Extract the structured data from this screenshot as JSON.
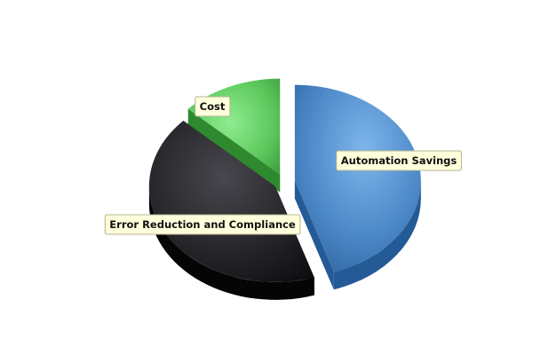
{
  "chart_data": {
    "type": "pie",
    "title": "",
    "slices": [
      {
        "label": "Automation Savings",
        "value": 45,
        "color": "#4a86c6"
      },
      {
        "label": "Error Reduction and Compliance",
        "value": 42,
        "color": "#2a2a2e"
      },
      {
        "label": "Cost",
        "value": 13,
        "color": "#5cc85c"
      }
    ],
    "style": "3d-exploded",
    "legend": "none"
  }
}
